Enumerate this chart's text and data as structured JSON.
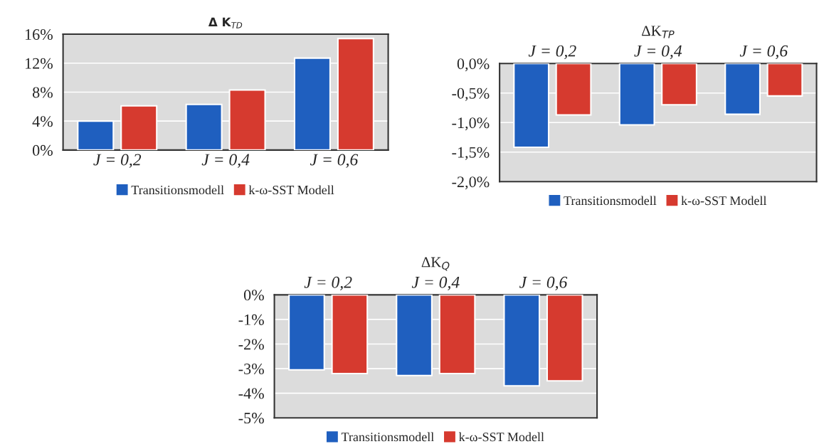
{
  "chart_data": [
    {
      "type": "bar",
      "title": "Δ K$_{TD}$",
      "categories": [
        "J = 0,2",
        "J = 0,4",
        "J = 0,6"
      ],
      "series": [
        {
          "name": "Transitionsmodell",
          "color": "#1f5fbf",
          "values": [
            4.0,
            6.3,
            12.7
          ]
        },
        {
          "name": "k-ω-SST Modell",
          "color": "#d63a2f",
          "values": [
            6.1,
            8.3,
            15.4
          ]
        }
      ],
      "ylim": [
        0,
        16
      ],
      "yticks": [
        {
          "value": 0,
          "label": "0%"
        },
        {
          "value": 4,
          "label": "4%"
        },
        {
          "value": 8,
          "label": "8%"
        },
        {
          "value": 12,
          "label": "12%"
        },
        {
          "value": 16,
          "label": "16%"
        }
      ],
      "grid": "y",
      "legend": "bottom"
    },
    {
      "type": "bar",
      "title": "ΔK$_{TP}$",
      "categories": [
        "J = 0,2",
        "J = 0,4",
        "J = 0,6"
      ],
      "series": [
        {
          "name": "Transitionsmodell",
          "color": "#1f5fbf",
          "values": [
            -1.42,
            -1.04,
            -0.86
          ]
        },
        {
          "name": "k-ω-SST Modell",
          "color": "#d63a2f",
          "values": [
            -0.87,
            -0.7,
            -0.55
          ]
        }
      ],
      "ylim": [
        -2,
        0
      ],
      "yticks": [
        {
          "value": 0,
          "label": "0,0%"
        },
        {
          "value": -0.5,
          "label": "-0,5%"
        },
        {
          "value": -1,
          "label": "-1,0%"
        },
        {
          "value": -1.5,
          "label": "-1,5%"
        },
        {
          "value": -2,
          "label": "-2,0%"
        }
      ],
      "grid": "y",
      "legend": "bottom"
    },
    {
      "type": "bar",
      "title": "ΔK$_{Q}$",
      "categories": [
        "J = 0,2",
        "J = 0,4",
        "J = 0,6"
      ],
      "series": [
        {
          "name": "Transitionsmodell",
          "color": "#1f5fbf",
          "values": [
            -3.05,
            -3.28,
            -3.7
          ]
        },
        {
          "name": "k-ω-SST Modell",
          "color": "#d63a2f",
          "values": [
            -3.2,
            -3.2,
            -3.5
          ]
        }
      ],
      "ylim": [
        -5,
        0
      ],
      "yticks": [
        {
          "value": 0,
          "label": "0%"
        },
        {
          "value": -1,
          "label": "-1%"
        },
        {
          "value": -2,
          "label": "-2%"
        },
        {
          "value": -3,
          "label": "-3%"
        },
        {
          "value": -4,
          "label": "-4%"
        },
        {
          "value": -5,
          "label": "-5%"
        }
      ],
      "grid": "y",
      "legend": "bottom"
    }
  ]
}
